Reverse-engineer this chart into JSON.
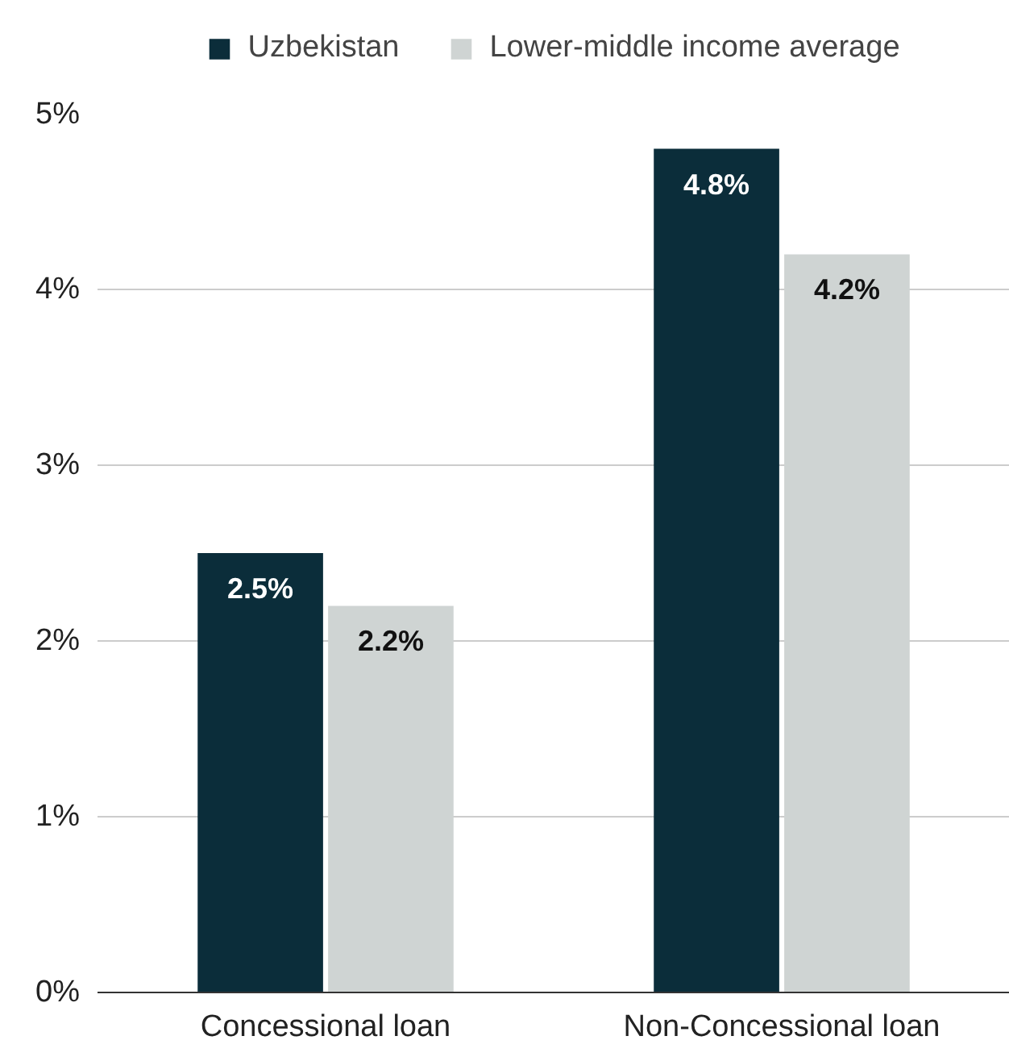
{
  "chart_data": {
    "type": "bar",
    "categories": [
      "Concessional loan",
      "Non-Concessional loan"
    ],
    "series": [
      {
        "name": "Uzbekistan",
        "color": "#0b2d3a",
        "values": [
          2.5,
          4.8
        ],
        "value_labels": [
          "2.5%",
          "4.8%"
        ]
      },
      {
        "name": "Lower-middle income average",
        "color": "#cfd4d3",
        "values": [
          2.2,
          4.2
        ],
        "value_labels": [
          "2.2%",
          "4.2%"
        ]
      }
    ],
    "ylim": [
      0,
      5
    ],
    "yticks": [
      {
        "value": 0,
        "label": "0%"
      },
      {
        "value": 1,
        "label": "1%"
      },
      {
        "value": 2,
        "label": "2%"
      },
      {
        "value": 3,
        "label": "3%"
      },
      {
        "value": 4,
        "label": "4%"
      },
      {
        "value": 5,
        "label": "5%"
      }
    ],
    "grid": "y",
    "legend": "top"
  }
}
